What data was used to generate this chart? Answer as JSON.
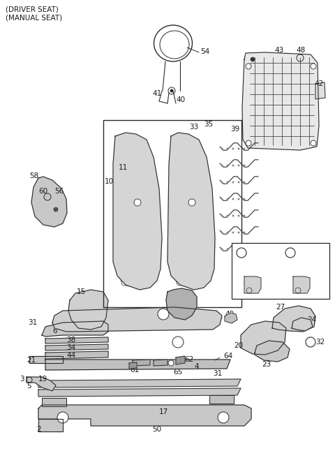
{
  "bg_color": "#ffffff",
  "lc": "#2a2a2a",
  "tc": "#1a1a1a",
  "fig_w": 4.8,
  "fig_h": 6.56,
  "dpi": 100,
  "title1": "(DRIVER SEAT)",
  "title2": "(MANUAL SEAT)"
}
